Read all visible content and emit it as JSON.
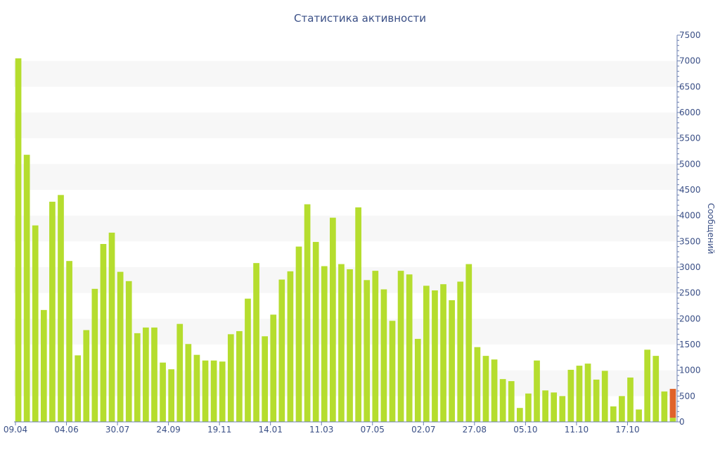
{
  "chart_data": {
    "type": "bar",
    "title": "Статистика активности",
    "ylabel": "Сообщений",
    "xlabel": "",
    "ylim": [
      0,
      7500
    ],
    "y_ticks": [
      0,
      500,
      1000,
      1500,
      2000,
      2500,
      3000,
      3500,
      4000,
      4500,
      5000,
      5500,
      6000,
      6500,
      7000,
      7500
    ],
    "y_axis_side": "right",
    "grid": "alternating-bands",
    "x_tick_labels": [
      {
        "index": 0,
        "label": "09.04"
      },
      {
        "index": 6,
        "label": "04.06"
      },
      {
        "index": 12,
        "label": "30.07"
      },
      {
        "index": 18,
        "label": "24.09"
      },
      {
        "index": 24,
        "label": "19.11"
      },
      {
        "index": 30,
        "label": "14.01"
      },
      {
        "index": 36,
        "label": "11.03"
      },
      {
        "index": 42,
        "label": "07.05"
      },
      {
        "index": 48,
        "label": "02.07"
      },
      {
        "index": 54,
        "label": "27.08"
      },
      {
        "index": 60,
        "label": "05.10"
      },
      {
        "index": 66,
        "label": "11.10"
      },
      {
        "index": 72,
        "label": "17.10"
      }
    ],
    "series": [
      {
        "color": "#b5dd2e",
        "values": [
          7050,
          5180,
          3810,
          2170,
          4270,
          4400,
          3120,
          1290,
          1780,
          2580,
          3450,
          3670,
          2910,
          2730,
          1720,
          1830,
          1830,
          1150,
          1020,
          1900,
          1510,
          1300,
          1190,
          1190,
          1170,
          1700,
          1760,
          2390,
          3080,
          1660,
          2080,
          2760,
          2920,
          3400,
          4220,
          3490,
          3020,
          3960,
          3060,
          2960,
          4160,
          2750,
          2930,
          2570,
          1960,
          2930,
          2860,
          1610,
          2640,
          2550,
          2670,
          2360,
          2720,
          3060,
          1450,
          1280,
          1210,
          830,
          790,
          270,
          550,
          1190,
          610,
          570,
          500,
          1010,
          1090,
          1130,
          820,
          990,
          300,
          500,
          860,
          240,
          1400,
          1280,
          590,
          80
        ]
      },
      {
        "color": "#e0632a",
        "values": [
          0,
          0,
          0,
          0,
          0,
          0,
          0,
          0,
          0,
          0,
          0,
          0,
          0,
          0,
          0,
          0,
          0,
          0,
          0,
          0,
          0,
          0,
          0,
          0,
          0,
          0,
          0,
          0,
          0,
          0,
          0,
          0,
          0,
          0,
          0,
          0,
          0,
          0,
          0,
          0,
          0,
          0,
          0,
          0,
          0,
          0,
          0,
          0,
          0,
          0,
          0,
          0,
          0,
          0,
          0,
          0,
          0,
          0,
          0,
          0,
          0,
          0,
          0,
          0,
          0,
          0,
          0,
          0,
          0,
          0,
          0,
          0,
          0,
          0,
          0,
          0,
          0,
          560
        ]
      }
    ]
  }
}
